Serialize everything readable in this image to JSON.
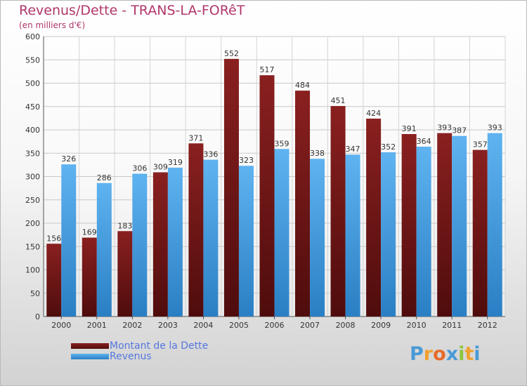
{
  "header": {
    "title": "Revenus/Dette - TRANS-LA-FORêT",
    "subtitle": "(en milliers d'€)"
  },
  "legend": {
    "items": [
      {
        "label": "Montant de la Dette",
        "color": "#7a1b1b"
      },
      {
        "label": "Revenus",
        "color": "#3e9be6"
      }
    ]
  },
  "logo": {
    "letters": [
      {
        "ch": "P",
        "color": "#4a9ad6"
      },
      {
        "ch": "r",
        "color": "#f0a030"
      },
      {
        "ch": "o",
        "color": "#e86a2a"
      },
      {
        "ch": "x",
        "color": "#4a9ad6"
      },
      {
        "ch": "i",
        "color": "#8cc63f"
      },
      {
        "ch": "t",
        "color": "#f0a030"
      },
      {
        "ch": "i",
        "color": "#4a9ad6"
      }
    ]
  },
  "chart_data": {
    "type": "bar",
    "title": "Revenus/Dette - TRANS-LA-FORêT",
    "subtitle": "(en milliers d'€)",
    "categories": [
      "2000",
      "2001",
      "2002",
      "2003",
      "2004",
      "2005",
      "2006",
      "2007",
      "2008",
      "2009",
      "2010",
      "2011",
      "2012"
    ],
    "series": [
      {
        "name": "Montant de la Dette",
        "color": "#7a1b1b",
        "values": [
          156,
          169,
          183,
          309,
          371,
          552,
          517,
          484,
          451,
          424,
          391,
          393,
          357
        ]
      },
      {
        "name": "Revenus",
        "color": "#3e9be6",
        "values": [
          326,
          286,
          306,
          319,
          336,
          323,
          359,
          338,
          347,
          352,
          364,
          387,
          393
        ]
      }
    ],
    "ylim": [
      0,
      600
    ],
    "yticks": [
      0,
      50,
      100,
      150,
      200,
      250,
      300,
      350,
      400,
      450,
      500,
      550,
      600
    ],
    "grid": true,
    "legend_position": "bottom-left"
  }
}
